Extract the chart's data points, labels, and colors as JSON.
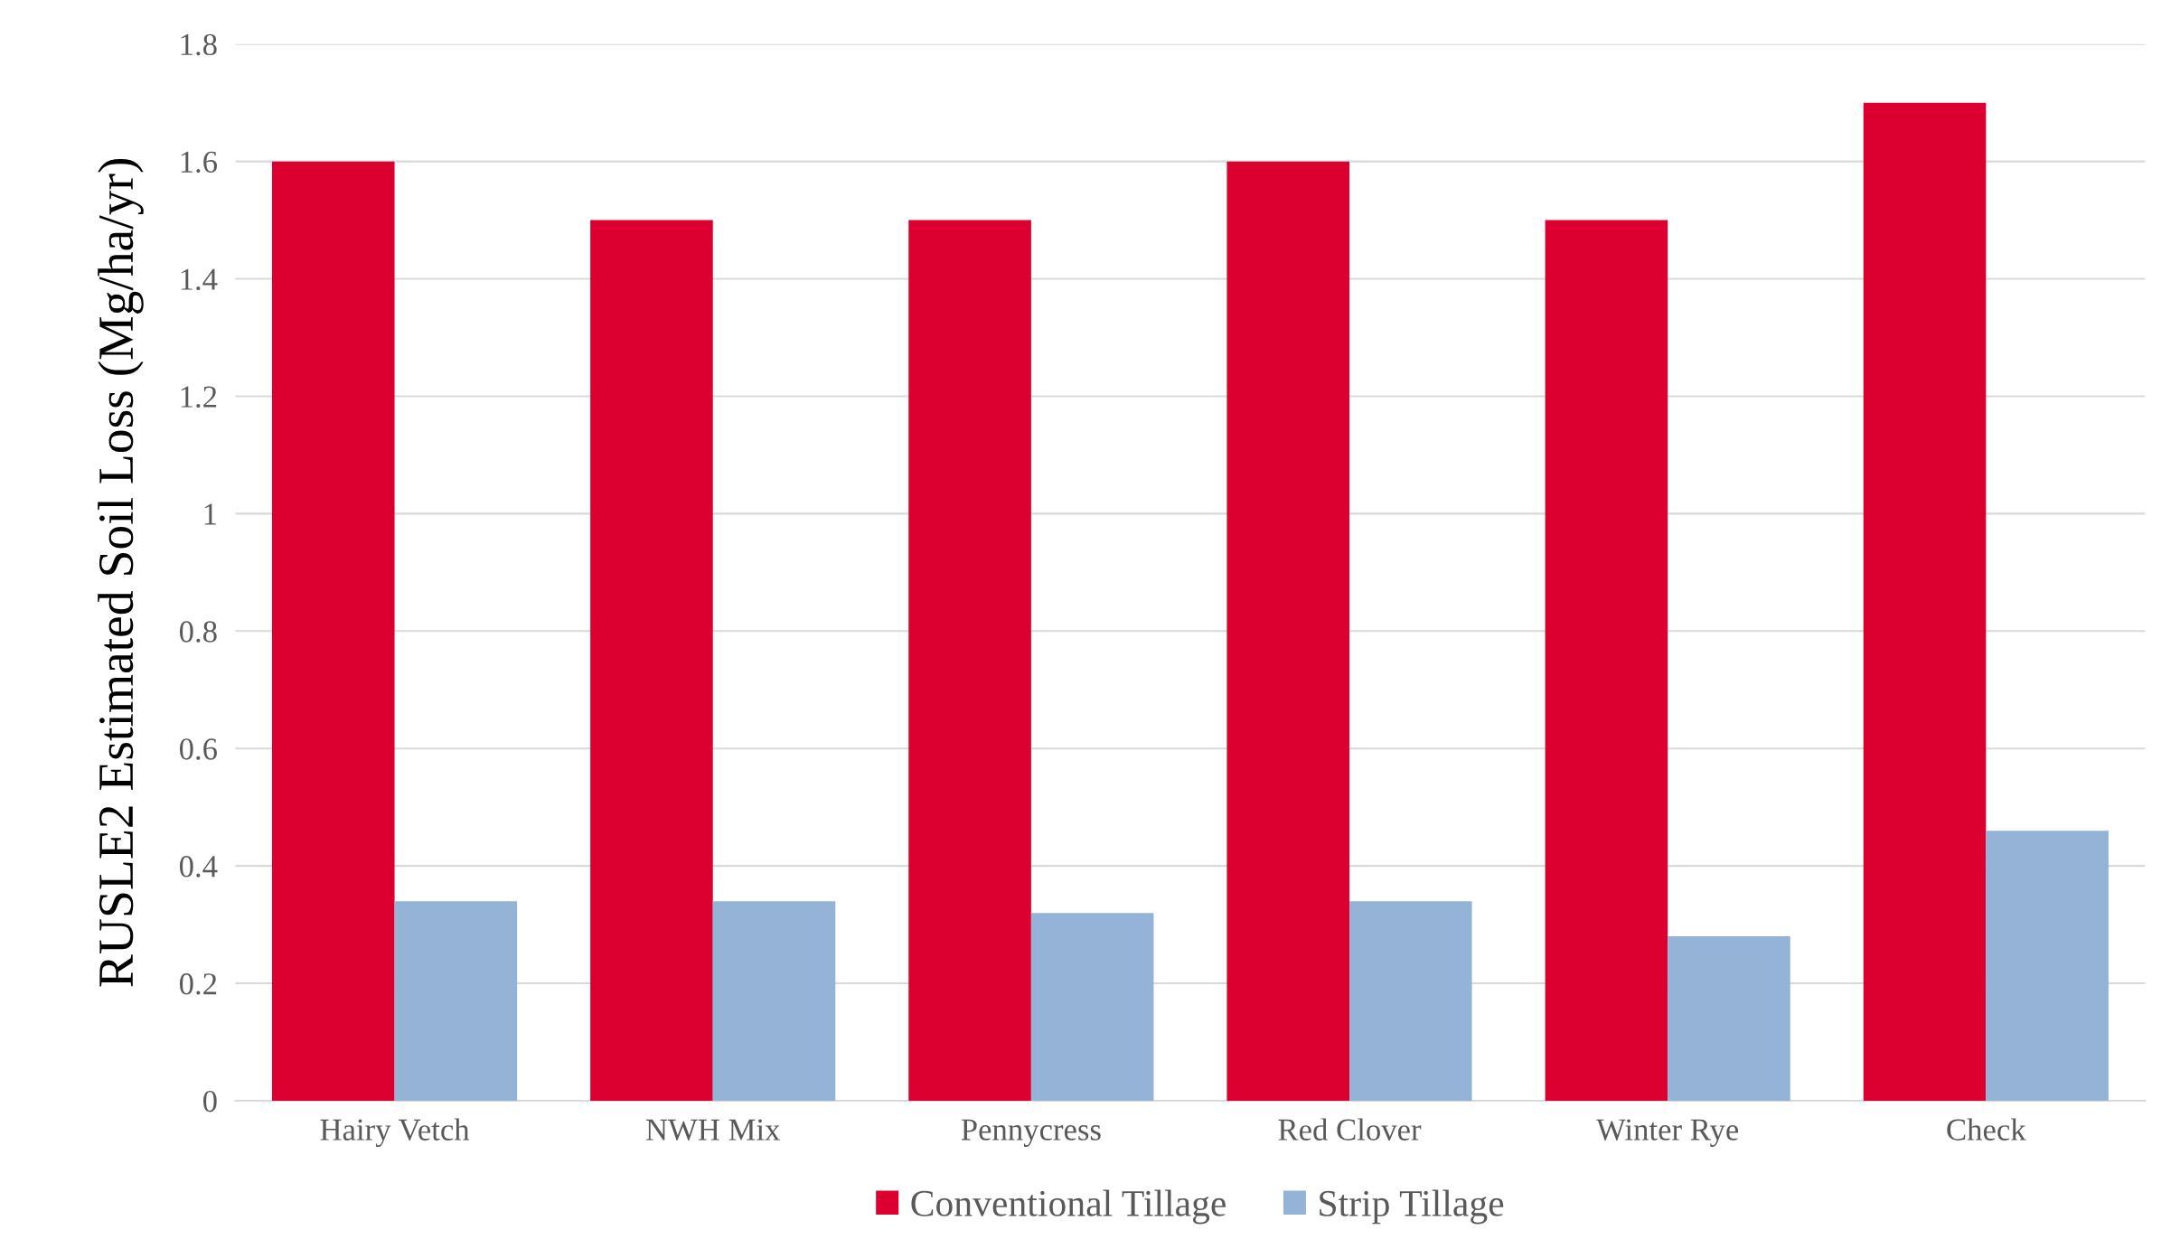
{
  "chart_data": {
    "type": "bar",
    "ylabel": "RUSLE2 Estimated Soil Loss (Mg/ha/yr)",
    "categories": [
      "Hairy Vetch",
      "NWH Mix",
      "Pennycress",
      "Red Clover",
      "Winter Rye",
      "Check"
    ],
    "series": [
      {
        "name": "Conventional Tillage",
        "color": "#dc0030",
        "values": [
          1.6,
          1.5,
          1.5,
          1.6,
          1.5,
          1.7
        ]
      },
      {
        "name": "Strip Tillage",
        "color": "#95b3d7",
        "values": [
          0.34,
          0.34,
          0.32,
          0.34,
          0.28,
          0.46
        ]
      }
    ],
    "ylim": [
      0,
      1.8
    ],
    "yticks": [
      0,
      0.2,
      0.4,
      0.6,
      0.8,
      1,
      1.2,
      1.4,
      1.6,
      1.8
    ],
    "grid": "y",
    "legend": "bottom"
  }
}
